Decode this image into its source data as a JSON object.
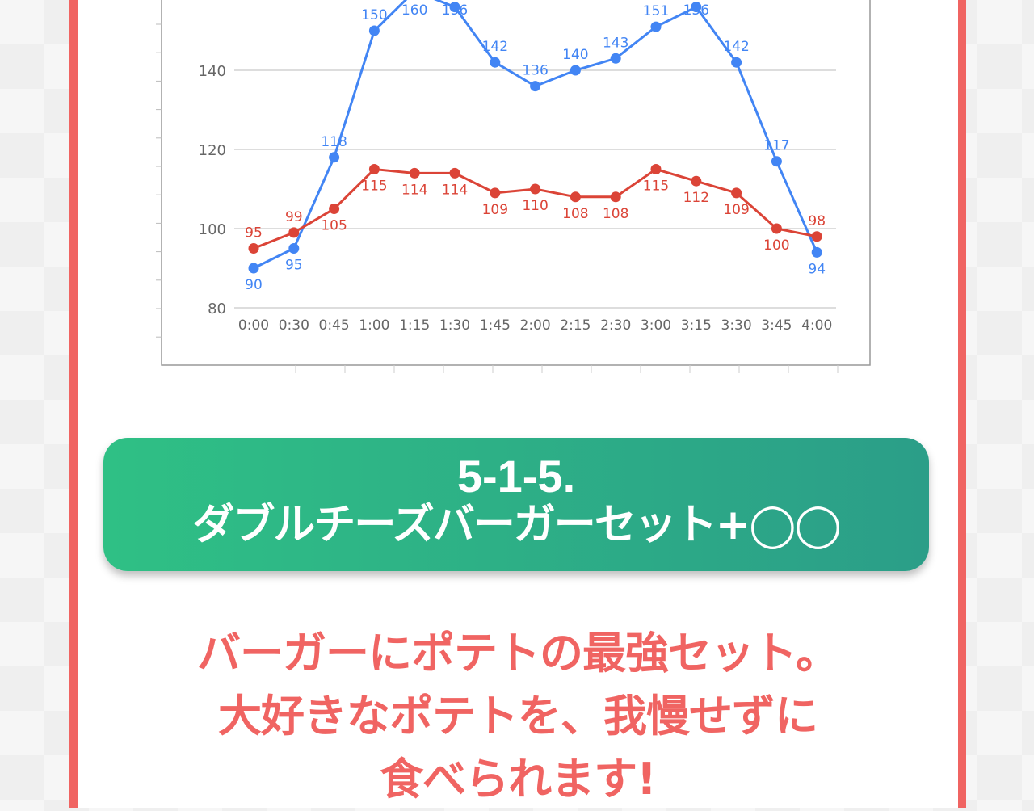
{
  "chart_data": {
    "type": "line",
    "categories": [
      "0:00",
      "0:30",
      "0:45",
      "1:00",
      "1:15",
      "1:30",
      "1:45",
      "2:00",
      "2:15",
      "2:30",
      "3:00",
      "3:15",
      "3:30",
      "3:45",
      "4:00"
    ],
    "series": [
      {
        "name": "blue",
        "color": "#4285f4",
        "values": [
          90,
          95,
          118,
          150,
          160,
          156,
          142,
          136,
          140,
          143,
          151,
          156,
          142,
          117,
          94
        ]
      },
      {
        "name": "red",
        "color": "#db4437",
        "values": [
          95,
          99,
          105,
          115,
          114,
          114,
          109,
          110,
          108,
          108,
          115,
          112,
          109,
          100,
          98
        ]
      }
    ],
    "yticks": [
      80,
      100,
      120,
      140
    ],
    "ylim": [
      80,
      160
    ],
    "grid": true
  },
  "section": {
    "number": "5-1-5.",
    "title": "ダブルチーズバーガーセット+◯◯"
  },
  "description": [
    "バーガーにポテトの最強セット。",
    "大好きなポテトを、我慢せずに",
    "食べられます!"
  ]
}
